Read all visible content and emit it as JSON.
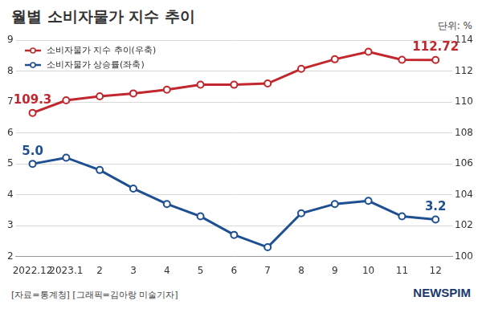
{
  "chart_data": {
    "type": "line",
    "title": "월별 소비자물가 지수 추이",
    "unit": "단위: %",
    "source": "[자료=통계청] [그래픽=김아랑 미술기자]",
    "logo": "NEWSPIM",
    "categories": [
      "2022.12",
      "2023.1",
      "2",
      "3",
      "4",
      "5",
      "6",
      "7",
      "8",
      "9",
      "10",
      "11",
      "12"
    ],
    "series": [
      {
        "name": "소비자물가 지수 추이(우축)",
        "color": "#c1272d",
        "axis": "y2",
        "marker": "circle",
        "values": [
          109.3,
          110.11,
          110.37,
          110.56,
          110.8,
          111.13,
          111.12,
          111.2,
          112.15,
          112.77,
          113.26,
          112.74,
          112.72
        ],
        "value_labels": [
          "109.3",
          null,
          null,
          null,
          null,
          null,
          null,
          null,
          null,
          null,
          null,
          null,
          "112.72"
        ]
      },
      {
        "name": "소비자물가 상승률(좌축)",
        "color": "#1d4f91",
        "marker": "circle",
        "values": [
          5.0,
          5.2,
          4.8,
          4.2,
          3.7,
          3.3,
          2.7,
          2.3,
          3.4,
          3.7,
          3.8,
          3.3,
          3.2
        ],
        "value_labels": [
          "5.0",
          null,
          null,
          null,
          null,
          null,
          null,
          null,
          null,
          null,
          null,
          null,
          "3.2"
        ]
      }
    ],
    "ylim": [
      2,
      9
    ],
    "yticks": [
      2,
      3,
      4,
      5,
      6,
      7,
      8,
      9
    ],
    "y2lim": [
      100,
      114
    ],
    "y2ticks": [
      100,
      102,
      104,
      106,
      108,
      110,
      112,
      114
    ],
    "grid": true,
    "legend": "upper left",
    "data_labels": true
  }
}
